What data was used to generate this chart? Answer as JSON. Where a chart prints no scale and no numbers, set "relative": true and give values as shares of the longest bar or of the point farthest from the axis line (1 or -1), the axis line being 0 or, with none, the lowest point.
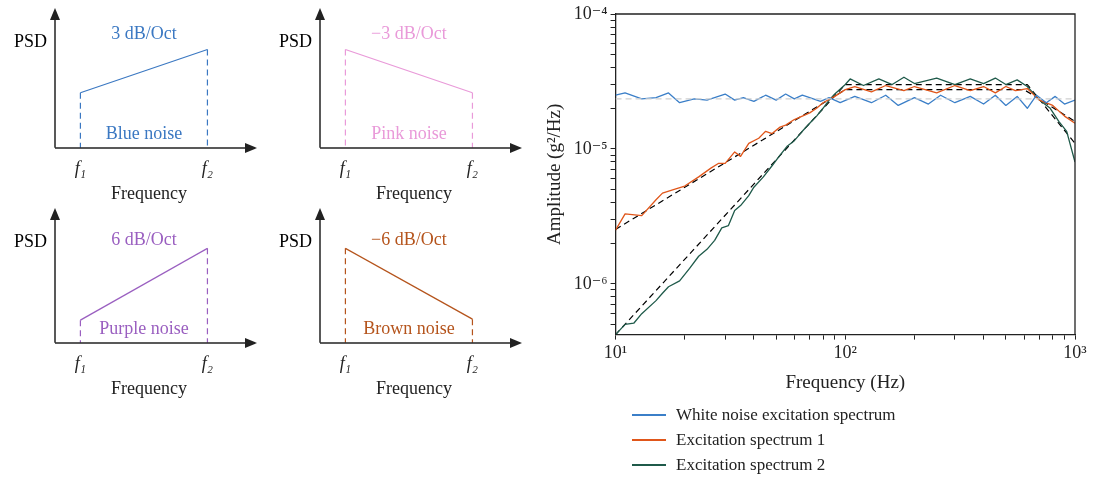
{
  "chart_data": [
    {
      "type": "line",
      "relative": true,
      "categories": [
        "f₁",
        "f₂"
      ],
      "xlabel": "Frequency",
      "ylabel": "PSD",
      "tick_labels": "x",
      "annotations": [
        "3 dB/Oct",
        "Blue noise"
      ],
      "ref_lines": [
        {
          "axis": "x",
          "value": "f₁",
          "color": "#3b78c2",
          "line_style": "dashed"
        },
        {
          "axis": "x",
          "value": "f₂",
          "color": "#3b78c2",
          "line_style": "dashed"
        }
      ],
      "series": [
        {
          "color": "#3b78c2",
          "values": [
            0.56,
            1
          ]
        }
      ]
    },
    {
      "type": "line",
      "relative": true,
      "categories": [
        "f₁",
        "f₂"
      ],
      "xlabel": "Frequency",
      "ylabel": "PSD",
      "tick_labels": "x",
      "annotations": [
        "−3 dB/Oct",
        "Pink noise"
      ],
      "ref_lines": [
        {
          "axis": "x",
          "value": "f₁",
          "color": "#e99ad9",
          "line_style": "dashed"
        },
        {
          "axis": "x",
          "value": "f₂",
          "color": "#e99ad9",
          "line_style": "dashed"
        }
      ],
      "series": [
        {
          "color": "#e99ad9",
          "values": [
            1,
            0.56
          ]
        }
      ]
    },
    {
      "type": "line",
      "relative": true,
      "categories": [
        "f₁",
        "f₂"
      ],
      "xlabel": "Frequency",
      "ylabel": "PSD",
      "tick_labels": "x",
      "annotations": [
        "6 dB/Oct",
        "Purple noise"
      ],
      "ref_lines": [
        {
          "axis": "x",
          "value": "f₁",
          "color": "#9a5fc0",
          "line_style": "dashed"
        },
        {
          "axis": "x",
          "value": "f₂",
          "color": "#9a5fc0",
          "line_style": "dashed"
        }
      ],
      "series": [
        {
          "color": "#9a5fc0",
          "values": [
            0.24,
            1
          ]
        }
      ]
    },
    {
      "type": "line",
      "relative": true,
      "categories": [
        "f₁",
        "f₂"
      ],
      "xlabel": "Frequency",
      "ylabel": "PSD",
      "tick_labels": "x",
      "annotations": [
        "−6 dB/Oct",
        "Brown noise"
      ],
      "ref_lines": [
        {
          "axis": "x",
          "value": "f₁",
          "color": "#b5541c",
          "line_style": "dashed"
        },
        {
          "axis": "x",
          "value": "f₂",
          "color": "#b5541c",
          "line_style": "dashed"
        }
      ],
      "series": [
        {
          "color": "#b5541c",
          "values": [
            1,
            0.25
          ]
        }
      ]
    },
    {
      "type": "line",
      "xlabel": "Frequency (Hz)",
      "ylabel": "Amplitude (g²/Hz)",
      "log": "xy",
      "grid": false,
      "legend": "bottom",
      "xlim": [
        10,
        1000
      ],
      "ylim": [
        4.2e-07,
        0.0001
      ],
      "xticks": [
        {
          "value": 10,
          "label": "10¹"
        },
        {
          "value": 20,
          "label": null
        },
        {
          "value": 30,
          "label": null
        },
        {
          "value": 40,
          "label": null
        },
        {
          "value": 50,
          "label": null
        },
        {
          "value": 60,
          "label": null
        },
        {
          "value": 70,
          "label": null
        },
        {
          "value": 80,
          "label": null
        },
        {
          "value": 90,
          "label": null
        },
        {
          "value": 100,
          "label": "10²"
        },
        {
          "value": 200,
          "label": null
        },
        {
          "value": 300,
          "label": null
        },
        {
          "value": 400,
          "label": null
        },
        {
          "value": 500,
          "label": null
        },
        {
          "value": 600,
          "label": null
        },
        {
          "value": 700,
          "label": null
        },
        {
          "value": 800,
          "label": null
        },
        {
          "value": 900,
          "label": null
        },
        {
          "value": 1000,
          "label": "10³"
        }
      ],
      "yticks": [
        {
          "value": 5e-07,
          "label": null
        },
        {
          "value": 6e-07,
          "label": null
        },
        {
          "value": 7e-07,
          "label": null
        },
        {
          "value": 8e-07,
          "label": null
        },
        {
          "value": 9e-07,
          "label": null
        },
        {
          "value": 1e-06,
          "label": "10⁻⁶"
        },
        {
          "value": 2e-06,
          "label": null
        },
        {
          "value": 3e-06,
          "label": null
        },
        {
          "value": 4e-06,
          "label": null
        },
        {
          "value": 5e-06,
          "label": null
        },
        {
          "value": 6e-06,
          "label": null
        },
        {
          "value": 7e-06,
          "label": null
        },
        {
          "value": 8e-06,
          "label": null
        },
        {
          "value": 9e-06,
          "label": null
        },
        {
          "value": 1e-05,
          "label": "10⁻⁵"
        },
        {
          "value": 2e-05,
          "label": null
        },
        {
          "value": 3e-05,
          "label": null
        },
        {
          "value": 4e-05,
          "label": null
        },
        {
          "value": 5e-05,
          "label": null
        },
        {
          "value": 6e-05,
          "label": null
        },
        {
          "value": 7e-05,
          "label": null
        },
        {
          "value": 8e-05,
          "label": null
        },
        {
          "value": 9e-05,
          "label": null
        },
        {
          "value": 0.0001,
          "label": "10⁻⁴"
        }
      ],
      "series": [
        {
          "type": "line",
          "line_style": "dashed",
          "color": "#d0d0d0",
          "x": [
            10,
            1000
          ],
          "values": [
            2.35e-05,
            2.35e-05
          ]
        },
        {
          "type": "line",
          "name": "White noise excitation spectrum",
          "color": "#3b7fc8",
          "x": [
            10,
            11,
            13,
            15,
            17,
            19,
            22,
            25,
            28,
            30,
            33,
            36,
            40,
            45,
            50,
            55,
            60,
            65,
            70,
            78,
            85,
            95,
            110,
            130,
            150,
            170,
            200,
            230,
            260,
            300,
            350,
            400,
            450,
            500,
            560,
            620,
            680,
            750,
            820,
            900,
            1000
          ],
          "values": [
            2.5e-05,
            2.6e-05,
            2.35e-05,
            2.4e-05,
            2.6e-05,
            2.2e-05,
            2.35e-05,
            2.3e-05,
            2.45e-05,
            2.55e-05,
            2.3e-05,
            2.4e-05,
            2.25e-05,
            2.5e-05,
            2.3e-05,
            2.55e-05,
            2.35e-05,
            2.5e-05,
            2.4e-05,
            2.25e-05,
            2.4e-05,
            2.2e-05,
            2.45e-05,
            2.2e-05,
            2.5e-05,
            2.1e-05,
            2.4e-05,
            2.15e-05,
            2.5e-05,
            2.2e-05,
            2.45e-05,
            2.15e-05,
            2.5e-05,
            2.1e-05,
            2.45e-05,
            2e-05,
            2.5e-05,
            2.2e-05,
            2.45e-05,
            2.15e-05,
            2.3e-05
          ]
        },
        {
          "type": "line",
          "name": "Excitation spectrum 1",
          "color": "#e0561a",
          "x": [
            10,
            11,
            13,
            15,
            16,
            18,
            20,
            23,
            26,
            28,
            30,
            33,
            35,
            38,
            42,
            45,
            48,
            52,
            55,
            60,
            65,
            70,
            75,
            80,
            90,
            100,
            110,
            130,
            150,
            180,
            200,
            250,
            300,
            350,
            400,
            450,
            500,
            550,
            620,
            700,
            800,
            900,
            1000
          ],
          "values": [
            2.5e-06,
            3.3e-06,
            3.2e-06,
            4.2e-06,
            4.7e-06,
            5e-06,
            5.3e-06,
            6.2e-06,
            7.2e-06,
            7.8e-06,
            7.8e-06,
            9.5e-06,
            8.8e-06,
            1.1e-05,
            1.2e-05,
            1.35e-05,
            1.3e-05,
            1.45e-05,
            1.5e-05,
            1.65e-05,
            1.75e-05,
            1.85e-05,
            2e-05,
            2.2e-05,
            2.45e-05,
            2.75e-05,
            2.9e-05,
            2.65e-05,
            2.95e-05,
            2.7e-05,
            2.9e-05,
            2.6e-05,
            2.95e-05,
            2.7e-05,
            2.9e-05,
            2.6e-05,
            2.9e-05,
            2.7e-05,
            2.8e-05,
            2.3e-05,
            2.1e-05,
            1.75e-05,
            1.55e-05
          ]
        },
        {
          "type": "line",
          "name": "Excitation spectrum 2",
          "color": "#1f5a4a",
          "x": [
            10,
            11,
            12,
            13,
            15,
            16,
            17,
            19,
            21,
            23,
            25,
            27,
            29,
            31,
            33,
            35,
            38,
            40,
            44,
            48,
            52,
            56,
            60,
            65,
            70,
            75,
            80,
            85,
            90,
            100,
            105,
            120,
            140,
            160,
            180,
            200,
            250,
            300,
            350,
            400,
            450,
            500,
            560,
            620,
            700,
            780,
            850,
            920,
            1000
          ],
          "values": [
            4.2e-07,
            5e-07,
            5.1e-07,
            6e-07,
            7.5e-07,
            8.5e-07,
            9.5e-07,
            1.05e-06,
            1.3e-06,
            1.6e-06,
            1.8e-06,
            2.1e-06,
            2.6e-06,
            2.7e-06,
            3.5e-06,
            3.8e-06,
            4.5e-06,
            5.2e-06,
            6.2e-06,
            7.5e-06,
            9e-06,
            1.05e-05,
            1.15e-05,
            1.35e-05,
            1.55e-05,
            1.75e-05,
            2e-05,
            2.3e-05,
            2.55e-05,
            3e-05,
            3.3e-05,
            2.95e-05,
            3.3e-05,
            3e-05,
            3.4e-05,
            3.05e-05,
            3.35e-05,
            3e-05,
            3.3e-05,
            3.05e-05,
            3.35e-05,
            3e-05,
            3.25e-05,
            2.9e-05,
            2.3e-05,
            2e-05,
            1.6e-05,
            1.35e-05,
            8e-06
          ]
        },
        {
          "type": "line",
          "line_style": "dashed",
          "color": "#000000",
          "x": [
            10,
            100,
            600,
            1000
          ],
          "values": [
            2.53e-06,
            2.75e-05,
            2.75e-05,
            1.6e-05
          ]
        },
        {
          "type": "line",
          "line_style": "dashed",
          "color": "#000000",
          "x": [
            10,
            100,
            620,
            1000
          ],
          "values": [
            4.2e-07,
            3e-05,
            3e-05,
            1.1e-05
          ]
        }
      ]
    }
  ]
}
